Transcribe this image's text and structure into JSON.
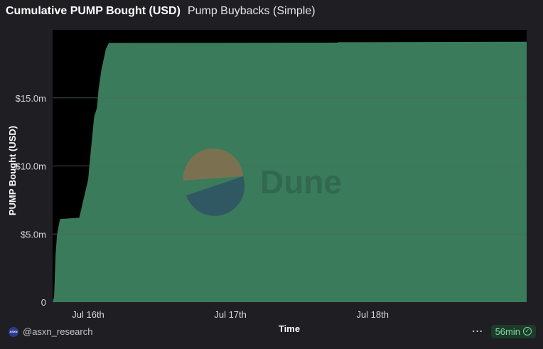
{
  "header": {
    "title": "Cumulative PUMP Bought (USD)",
    "subtitle": "Pump Buybacks (Simple)"
  },
  "footer": {
    "author": "@asxn_research",
    "avatar_text": "ASXN",
    "more": "⋯",
    "runtime": "56min"
  },
  "watermark": "Dune",
  "colors": {
    "background": "#1f1e22",
    "area": "#3a7b5c",
    "grid": "#4b6b5b"
  },
  "chart_data": {
    "type": "area",
    "xlabel": "Time",
    "ylabel": "PUMP Bought (USD)",
    "ylim": [
      0,
      20000000
    ],
    "xlim": [
      "2025-07-15T18:00",
      "2025-07-19T02:00"
    ],
    "yticks": [
      {
        "value": 0,
        "label": "0"
      },
      {
        "value": 5000000,
        "label": "$5.0m"
      },
      {
        "value": 10000000,
        "label": "$10.0m"
      },
      {
        "value": 15000000,
        "label": "$15.0m"
      }
    ],
    "xticks": [
      {
        "value": "2025-07-16T00:00",
        "label": "Jul 16th"
      },
      {
        "value": "2025-07-17T00:00",
        "label": "Jul 17th"
      },
      {
        "value": "2025-07-18T00:00",
        "label": "Jul 18th"
      }
    ],
    "grid": true,
    "points": [
      {
        "x": "2025-07-15T18:00",
        "y": 0
      },
      {
        "x": "2025-07-15T18:15",
        "y": 400000
      },
      {
        "x": "2025-07-15T18:30",
        "y": 3500000
      },
      {
        "x": "2025-07-15T18:45",
        "y": 5000000
      },
      {
        "x": "2025-07-15T19:15",
        "y": 6100000
      },
      {
        "x": "2025-07-15T22:30",
        "y": 6200000
      },
      {
        "x": "2025-07-16T00:00",
        "y": 9000000
      },
      {
        "x": "2025-07-16T00:15",
        "y": 10200000
      },
      {
        "x": "2025-07-16T01:00",
        "y": 13600000
      },
      {
        "x": "2025-07-16T01:30",
        "y": 14300000
      },
      {
        "x": "2025-07-16T01:45",
        "y": 15600000
      },
      {
        "x": "2025-07-16T02:15",
        "y": 17100000
      },
      {
        "x": "2025-07-16T03:00",
        "y": 18600000
      },
      {
        "x": "2025-07-16T03:30",
        "y": 19040000
      },
      {
        "x": "2025-07-17T18:00",
        "y": 19060000
      },
      {
        "x": "2025-07-17T18:15",
        "y": 19090000
      },
      {
        "x": "2025-07-19T02:00",
        "y": 19130000
      }
    ]
  }
}
